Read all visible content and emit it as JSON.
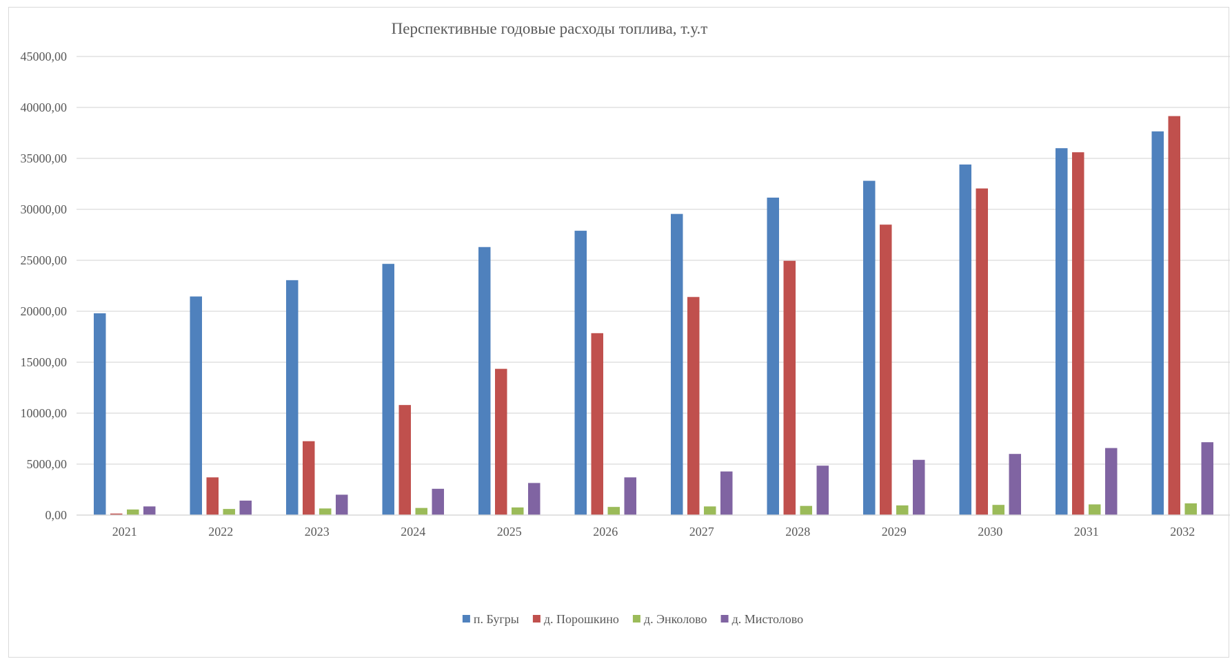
{
  "chart_data": {
    "type": "bar",
    "title": "Перспективные годовые расходы топлива, т.у.т",
    "xlabel": "",
    "ylabel": "",
    "ylim": [
      0,
      45000
    ],
    "y_ticks": [
      "0,00",
      "5000,00",
      "10000,00",
      "15000,00",
      "20000,00",
      "25000,00",
      "30000,00",
      "35000,00",
      "40000,00",
      "45000,00"
    ],
    "grid": true,
    "legend_position": "bottom",
    "categories": [
      "2021",
      "2022",
      "2023",
      "2024",
      "2025",
      "2026",
      "2027",
      "2028",
      "2029",
      "2030",
      "2031",
      "2032"
    ],
    "series": [
      {
        "name": "п. Бугры",
        "color": "#4f81bd",
        "values": [
          19800,
          21450,
          23050,
          24650,
          26300,
          27900,
          29550,
          31150,
          32800,
          34400,
          36000,
          37650
        ]
      },
      {
        "name": "д. Порошкино",
        "color": "#c0504d",
        "values": [
          150,
          3700,
          7250,
          10800,
          14350,
          17850,
          21400,
          24950,
          28500,
          32050,
          35600,
          39150
        ]
      },
      {
        "name": "д. Энколово",
        "color": "#9bbb59",
        "values": [
          550,
          600,
          650,
          700,
          750,
          800,
          850,
          900,
          950,
          1000,
          1050,
          1150
        ]
      },
      {
        "name": "д. Мистолово",
        "color": "#8064a2",
        "values": [
          850,
          1420,
          2000,
          2580,
          3150,
          3700,
          4280,
          4850,
          5420,
          6000,
          6580,
          7150
        ]
      }
    ]
  }
}
